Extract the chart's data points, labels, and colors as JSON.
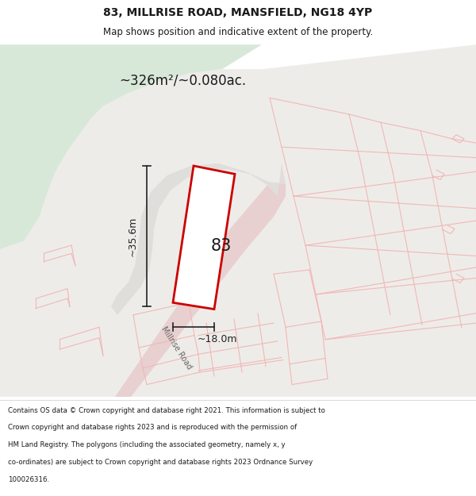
{
  "title": "83, MILLRISE ROAD, MANSFIELD, NG18 4YP",
  "subtitle": "Map shows position and indicative extent of the property.",
  "area_label": "~326m²/~0.080ac.",
  "property_number": "83",
  "dim_height": "~35.6m",
  "dim_width": "~18.0m",
  "road_label": "Millrise Road",
  "footer_lines": [
    "Contains OS data © Crown copyright and database right 2021. This information is subject to",
    "Crown copyright and database rights 2023 and is reproduced with the permission of",
    "HM Land Registry. The polygons (including the associated geometry, namely x, y",
    "co-ordinates) are subject to Crown copyright and database rights 2023 Ordnance Survey",
    "100026316."
  ],
  "bg_green_color": "#d8e8d8",
  "bg_urban_color": "#eeece8",
  "plot_bg_color": "#ffffff",
  "road_pink": "#f0b8b8",
  "property_fill": "#ffffff",
  "property_edge": "#cc0000",
  "dim_line_color": "#222222",
  "title_color": "#1a1a1a",
  "footer_color": "#1a1a1a",
  "path_gray": "#e0deda",
  "fig_width": 6.0,
  "fig_height": 6.25
}
